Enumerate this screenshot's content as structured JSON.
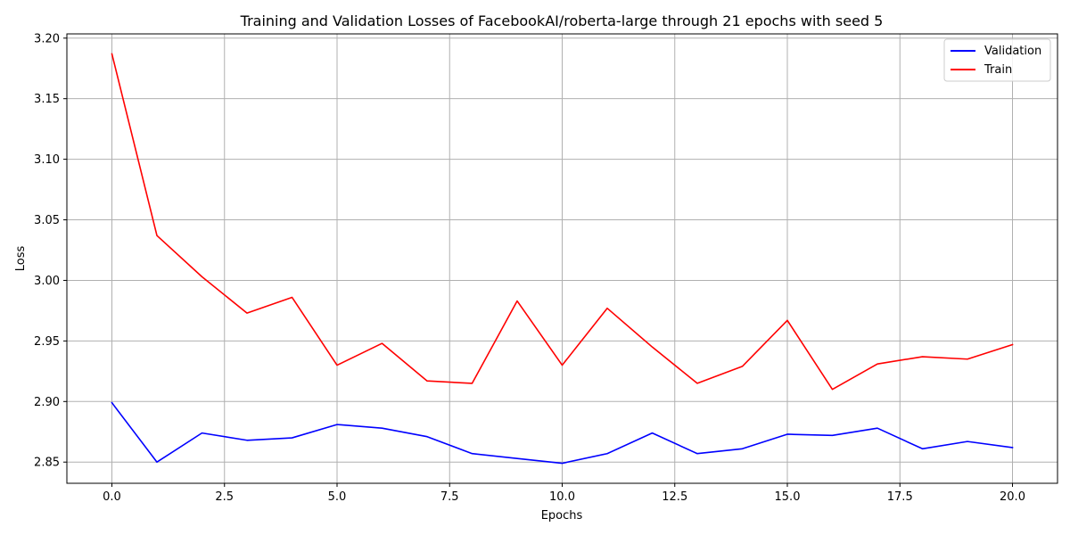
{
  "chart_data": {
    "type": "line",
    "title": "Training and Validation Losses of FacebookAI/roberta-large through 21 epochs with seed 5",
    "xlabel": "Epochs",
    "ylabel": "Loss",
    "xlim": [
      -1.0,
      21.0
    ],
    "ylim": [
      2.8325,
      3.2035
    ],
    "xticks": [
      0.0,
      2.5,
      5.0,
      7.5,
      10.0,
      12.5,
      15.0,
      17.5,
      20.0
    ],
    "xtick_labels": [
      "0.0",
      "2.5",
      "5.0",
      "7.5",
      "10.0",
      "12.5",
      "15.0",
      "17.5",
      "20.0"
    ],
    "yticks": [
      2.85,
      2.9,
      2.95,
      3.0,
      3.05,
      3.1,
      3.15,
      3.2
    ],
    "ytick_labels": [
      "2.85",
      "2.90",
      "2.95",
      "3.00",
      "3.05",
      "3.10",
      "3.15",
      "3.20"
    ],
    "grid": true,
    "legend_position": "top-right",
    "x": [
      0,
      1,
      2,
      3,
      4,
      5,
      6,
      7,
      8,
      9,
      10,
      11,
      12,
      13,
      14,
      15,
      16,
      17,
      18,
      19,
      20
    ],
    "series": [
      {
        "name": "Validation",
        "color": "#0000ff",
        "values": [
          2.899,
          2.85,
          2.874,
          2.868,
          2.87,
          2.881,
          2.878,
          2.871,
          2.857,
          2.853,
          2.849,
          2.857,
          2.874,
          2.857,
          2.861,
          2.873,
          2.872,
          2.878,
          2.861,
          2.867,
          2.862
        ]
      },
      {
        "name": "Train",
        "color": "#ff0000",
        "values": [
          3.187,
          3.037,
          3.003,
          2.973,
          2.986,
          2.93,
          2.948,
          2.917,
          2.915,
          2.983,
          2.93,
          2.977,
          2.945,
          2.915,
          2.929,
          2.967,
          2.91,
          2.931,
          2.937,
          2.935,
          2.947
        ]
      }
    ]
  }
}
